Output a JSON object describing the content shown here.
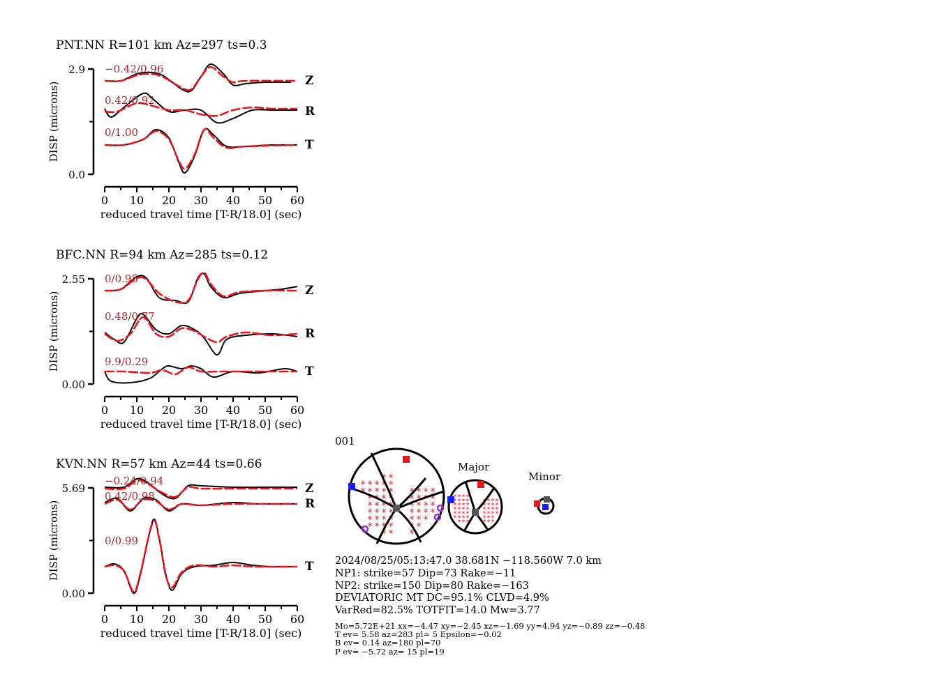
{
  "chart_data": {
    "type": "line",
    "panels": [
      {
        "title": "PNT.NN R=101 km Az=297 ts=0.3",
        "ylabel": "DISP (microns)",
        "xlabel": "reduced travel time [T-R/18.0] (sec)",
        "ymax_label": "2.9",
        "ymin_label": "0.0",
        "xticks": [
          "0",
          "10",
          "20",
          "30",
          "40",
          "50",
          "60"
        ],
        "xlim": [
          0,
          60
        ],
        "components": [
          {
            "name": "Z",
            "fit": "−0.42/0.96"
          },
          {
            "name": "R",
            "fit": "0.42/0.92"
          },
          {
            "name": "T",
            "fit": "0/1.00"
          }
        ]
      },
      {
        "title": "BFC.NN R=94 km Az=285 ts=0.12",
        "ylabel": "DISP (microns)",
        "xlabel": "reduced travel time [T-R/18.0] (sec)",
        "ymax_label": "2.55",
        "ymin_label": "0.00",
        "xticks": [
          "0",
          "10",
          "20",
          "30",
          "40",
          "50",
          "60"
        ],
        "xlim": [
          0,
          60
        ],
        "components": [
          {
            "name": "Z",
            "fit": "0/0.95"
          },
          {
            "name": "R",
            "fit": "0.48/0.77"
          },
          {
            "name": "T",
            "fit": "9.9/0.29"
          }
        ]
      },
      {
        "title": "KVN.NN R=57 km Az=44 ts=0.66",
        "ylabel": "DISP (microns)",
        "xlabel": "reduced travel time [T-R/18.0] (sec)",
        "ymax_label": "5.69",
        "ymin_label": "0.00",
        "xticks": [
          "0",
          "10",
          "20",
          "30",
          "40",
          "50",
          "60"
        ],
        "xlim": [
          0,
          60
        ],
        "components": [
          {
            "name": "Z",
            "fit": "−0.24/0.94"
          },
          {
            "name": "R",
            "fit": "0.42/0.98"
          },
          {
            "name": "T",
            "fit": "0/0.99"
          }
        ]
      }
    ]
  },
  "colors": {
    "observed": "#000000",
    "synthetic": "#e8151b",
    "fit_label": "#a0282e",
    "t_axis": "#e8151b",
    "p_axis": "#1a1aff",
    "b_axis": "#555555",
    "polarity": "#9b30d9"
  },
  "solution": {
    "id": "001",
    "major_label": "Major",
    "minor_label": "Minor",
    "lines": [
      "2024/08/25/05:13:47.0 38.681N −118.560W 7.0 km",
      "NP1: strike=57 Dip=73 Rake=−11",
      "NP2: strike=150 Dip=80 Rake=−163",
      "DEVIATORIC MT DC=95.1% CLVD=4.9%",
      "VarRed=82.5% TOTFIT=14.0 Mw=3.77"
    ],
    "small_lines": [
      "Mo=5.72E+21 xx=−4.47 xy=−2.45 xz=−1.69 yy=4.94 yz=−0.89 zz=−0.48",
      "T ev=  5.58 az=283 pl= 5 Epsilon=−0.02",
      "B ev=  0.14 az=180 pl=70",
      "P ev= −5.72 az= 15 pl=19"
    ]
  }
}
